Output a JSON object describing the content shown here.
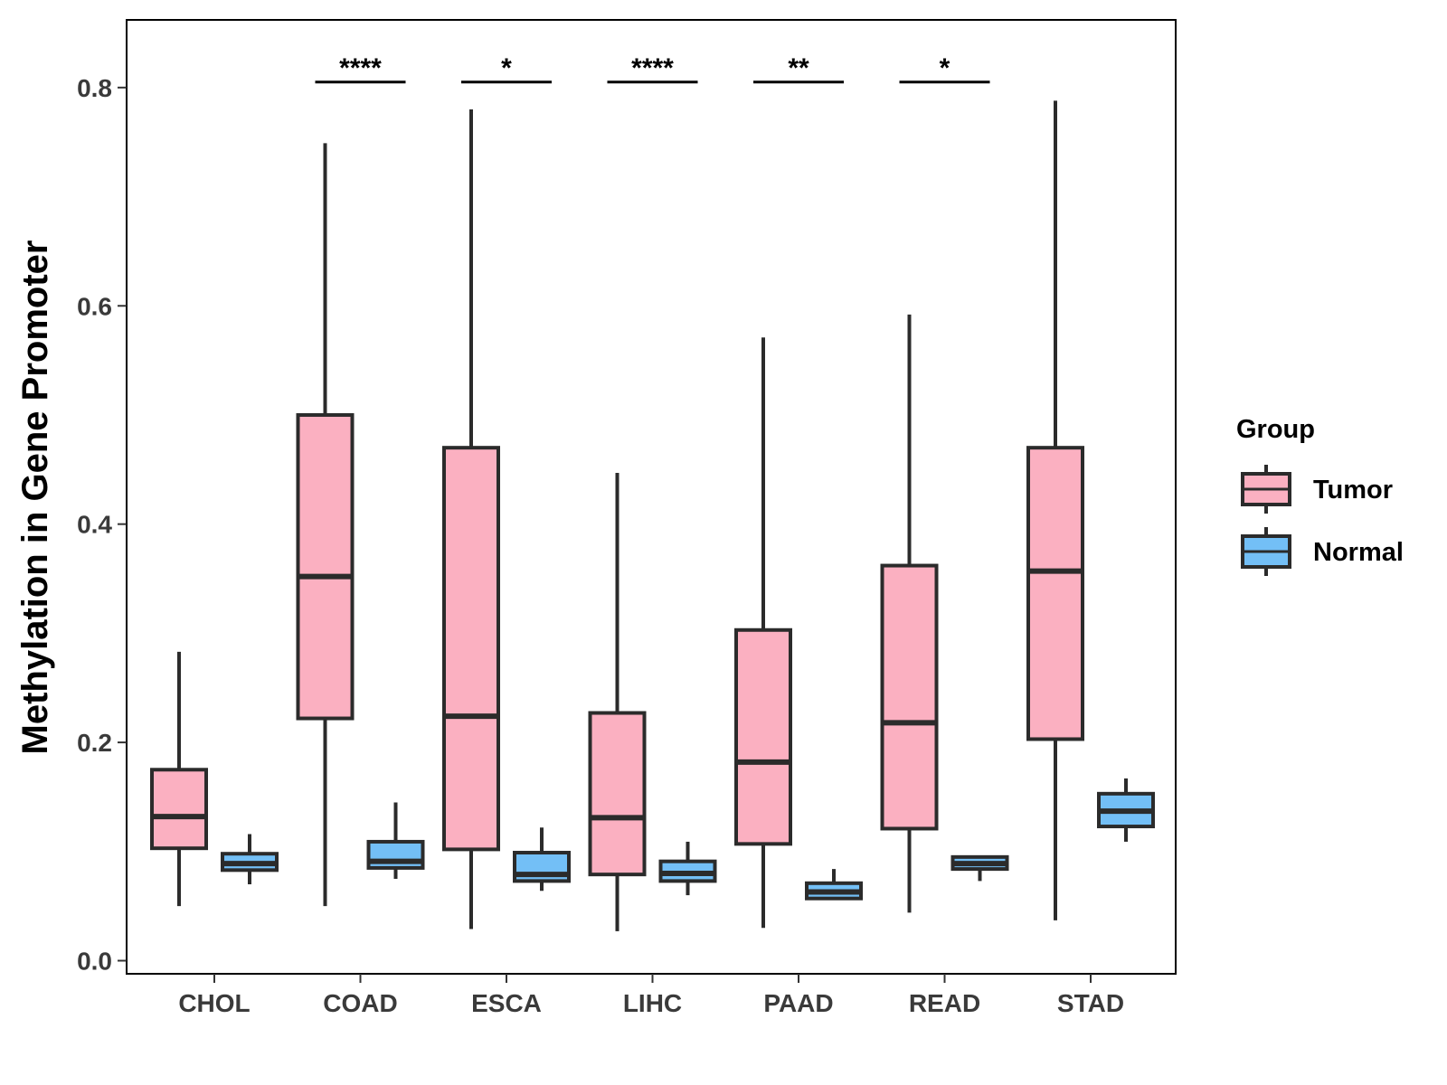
{
  "chart_data": {
    "type": "boxplot",
    "title": "",
    "xlabel": "",
    "ylabel": "Methylation in Gene Promoter",
    "ylim": [
      -0.012,
      0.862
    ],
    "yticks": [
      0.0,
      0.2,
      0.4,
      0.6,
      0.8
    ],
    "ytick_labels": [
      "0.0",
      "0.2",
      "0.4",
      "0.6",
      "0.8"
    ],
    "grid": false,
    "legend": {
      "title": "Group",
      "position": "right",
      "entries": [
        {
          "name": "Tumor",
          "color": "#fbb0c1"
        },
        {
          "name": "Normal",
          "color": "#73bff6"
        }
      ]
    },
    "categories": [
      "CHOL",
      "COAD",
      "ESCA",
      "LIHC",
      "PAAD",
      "READ",
      "STAD"
    ],
    "series": [
      {
        "name": "Tumor",
        "color": "#fbb0c1",
        "boxes": [
          {
            "category": "CHOL",
            "whisker_low": 0.05,
            "q1": 0.103,
            "median": 0.132,
            "q3": 0.175,
            "whisker_high": 0.283
          },
          {
            "category": "COAD",
            "whisker_low": 0.05,
            "q1": 0.222,
            "median": 0.352,
            "q3": 0.5,
            "whisker_high": 0.749
          },
          {
            "category": "ESCA",
            "whisker_low": 0.029,
            "q1": 0.102,
            "median": 0.224,
            "q3": 0.47,
            "whisker_high": 0.78
          },
          {
            "category": "LIHC",
            "whisker_low": 0.027,
            "q1": 0.079,
            "median": 0.131,
            "q3": 0.227,
            "whisker_high": 0.447
          },
          {
            "category": "PAAD",
            "whisker_low": 0.03,
            "q1": 0.107,
            "median": 0.182,
            "q3": 0.303,
            "whisker_high": 0.571
          },
          {
            "category": "READ",
            "whisker_low": 0.044,
            "q1": 0.121,
            "median": 0.218,
            "q3": 0.362,
            "whisker_high": 0.592
          },
          {
            "category": "STAD",
            "whisker_low": 0.037,
            "q1": 0.203,
            "median": 0.357,
            "q3": 0.47,
            "whisker_high": 0.788
          }
        ]
      },
      {
        "name": "Normal",
        "color": "#73bff6",
        "boxes": [
          {
            "category": "CHOL",
            "whisker_low": 0.07,
            "q1": 0.083,
            "median": 0.089,
            "q3": 0.098,
            "whisker_high": 0.116
          },
          {
            "category": "COAD",
            "whisker_low": 0.075,
            "q1": 0.085,
            "median": 0.091,
            "q3": 0.109,
            "whisker_high": 0.145
          },
          {
            "category": "ESCA",
            "whisker_low": 0.064,
            "q1": 0.073,
            "median": 0.079,
            "q3": 0.099,
            "whisker_high": 0.122
          },
          {
            "category": "LIHC",
            "whisker_low": 0.06,
            "q1": 0.073,
            "median": 0.08,
            "q3": 0.091,
            "whisker_high": 0.109
          },
          {
            "category": "PAAD",
            "whisker_low": 0.057,
            "q1": 0.057,
            "median": 0.063,
            "q3": 0.071,
            "whisker_high": 0.084
          },
          {
            "category": "READ",
            "whisker_low": 0.073,
            "q1": 0.084,
            "median": 0.089,
            "q3": 0.095,
            "whisker_high": 0.095
          },
          {
            "category": "STAD",
            "whisker_low": 0.109,
            "q1": 0.123,
            "median": 0.137,
            "q3": 0.153,
            "whisker_high": 0.167
          }
        ]
      }
    ],
    "annotations": [
      {
        "category": "COAD",
        "label": "****",
        "y": 0.805
      },
      {
        "category": "ESCA",
        "label": "*",
        "y": 0.805
      },
      {
        "category": "LIHC",
        "label": "****",
        "y": 0.805
      },
      {
        "category": "PAAD",
        "label": "**",
        "y": 0.805
      },
      {
        "category": "READ",
        "label": "*",
        "y": 0.805
      }
    ]
  }
}
